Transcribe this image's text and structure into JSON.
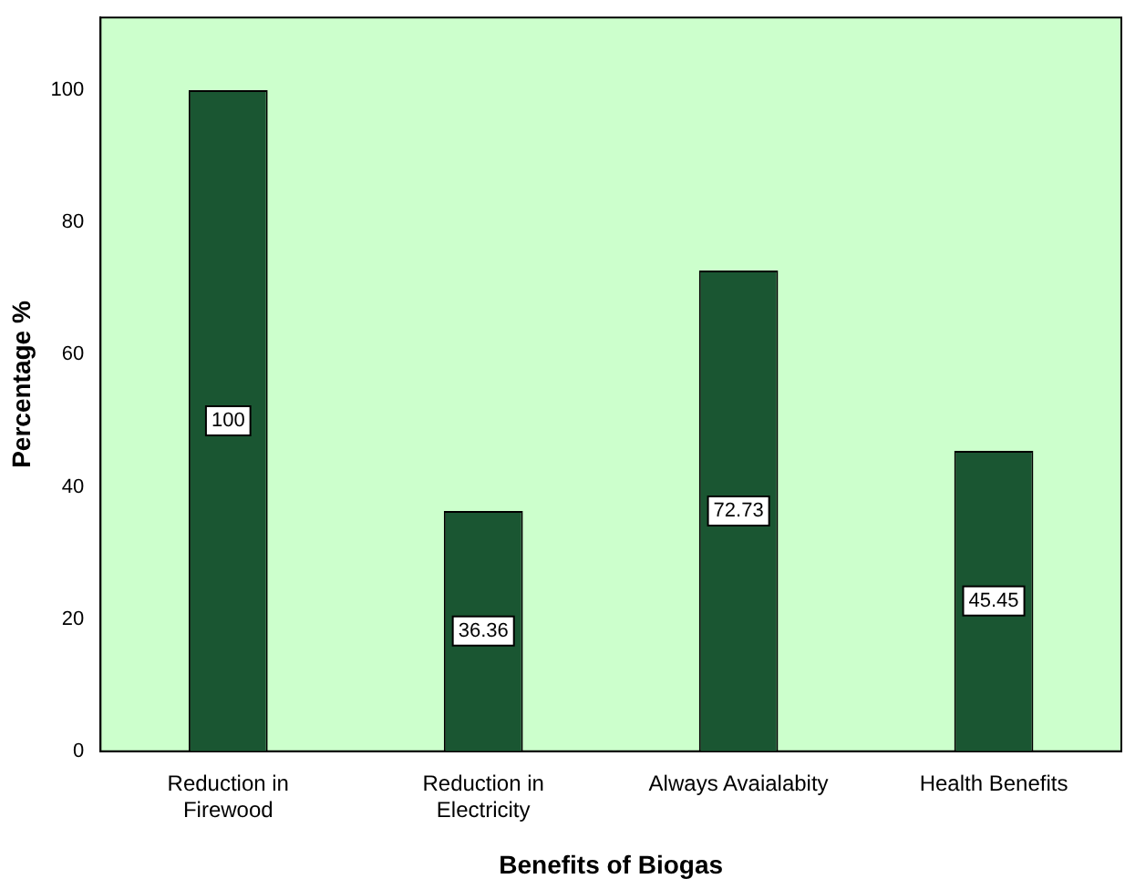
{
  "chart_data": {
    "type": "bar",
    "xlabel": "Benefits of Biogas",
    "ylabel": "Percentage %",
    "categories": [
      "Reduction in Firewood",
      "Reduction in Electricity",
      "Always Avaialabity",
      "Health Benefits"
    ],
    "values": [
      100,
      36.36,
      72.73,
      45.45
    ],
    "color": "#1a5632",
    "ylim": [
      0,
      111
    ],
    "yticks": [
      0,
      20,
      40,
      60,
      80,
      100
    ],
    "grid": false,
    "legend": false,
    "data_labels": true
  }
}
